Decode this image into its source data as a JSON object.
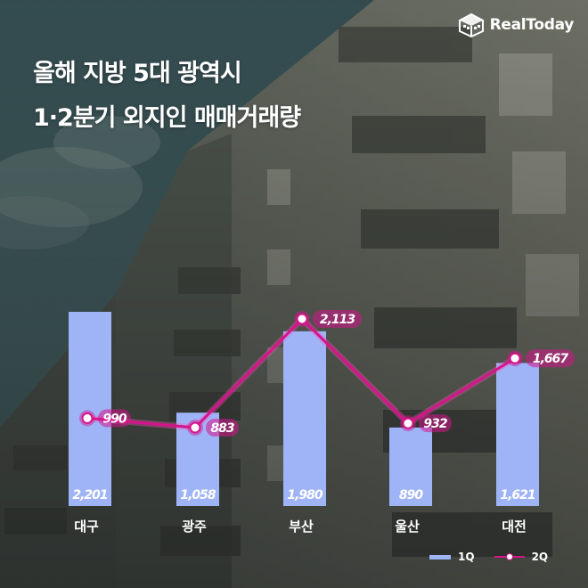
{
  "brand": {
    "name": "RealToday",
    "icon": "building-cube-icon"
  },
  "title_lines": [
    "올해 지방 5대 광역시",
    "1·2분기 외지인 매매거래량"
  ],
  "colors": {
    "bar": "#9fb4f7",
    "line": "#d6148c",
    "label_bg": "#d6148c",
    "text": "#ffffff"
  },
  "chart_data": {
    "type": "bar",
    "categories": [
      "대구",
      "광주",
      "부산",
      "울산",
      "대전"
    ],
    "series": [
      {
        "name": "1Q",
        "type": "bar",
        "values": [
          2201,
          1058,
          1980,
          890,
          1621
        ],
        "labels": [
          "2,201",
          "1,058",
          "1,980",
          "890",
          "1,621"
        ]
      },
      {
        "name": "2Q",
        "type": "line",
        "values": [
          990,
          883,
          2113,
          932,
          1667
        ],
        "labels": [
          "990",
          "883",
          "2,113",
          "932",
          "1,667"
        ]
      }
    ],
    "legend": [
      "1Q",
      "2Q"
    ],
    "legend_position": "bottom-right"
  }
}
